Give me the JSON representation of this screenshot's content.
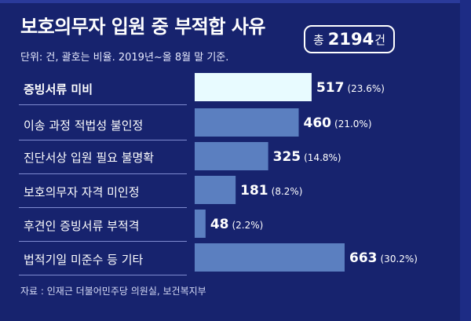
{
  "chart_data": {
    "type": "bar",
    "orientation": "horizontal",
    "title": "보호의무자 입원 중 부적합 사유",
    "subtitle": "단위: 건, 괄호는 비율.  2019년~올 8월 말 기준.",
    "total": {
      "prefix": "총",
      "value": "2194",
      "unit": "건"
    },
    "categories": [
      "증빙서류 미비",
      "이송 과정 적법성 불인정",
      "진단서상 입원 필요 불명확",
      "보호의무자 자격 미인정",
      "후견인 증빙서류 부적격",
      "법적기일 미준수 등 기타"
    ],
    "values": [
      517,
      460,
      325,
      181,
      48,
      663
    ],
    "value_labels": [
      "517",
      "460",
      "325",
      "181",
      "48",
      "663"
    ],
    "percent_labels": [
      "(23.6%)",
      "(21.0%)",
      "(14.8%)",
      "(8.2%)",
      "(2.2%)",
      "(30.2%)"
    ],
    "highlight_index": 0,
    "xlim": [
      0,
      663
    ],
    "colors": {
      "bar": "#5b7fc0",
      "highlight": "#e8fbff",
      "background": "#17236e"
    },
    "source": "자료 : 인재근 더불어민주당 의원실, 보건복지부"
  }
}
